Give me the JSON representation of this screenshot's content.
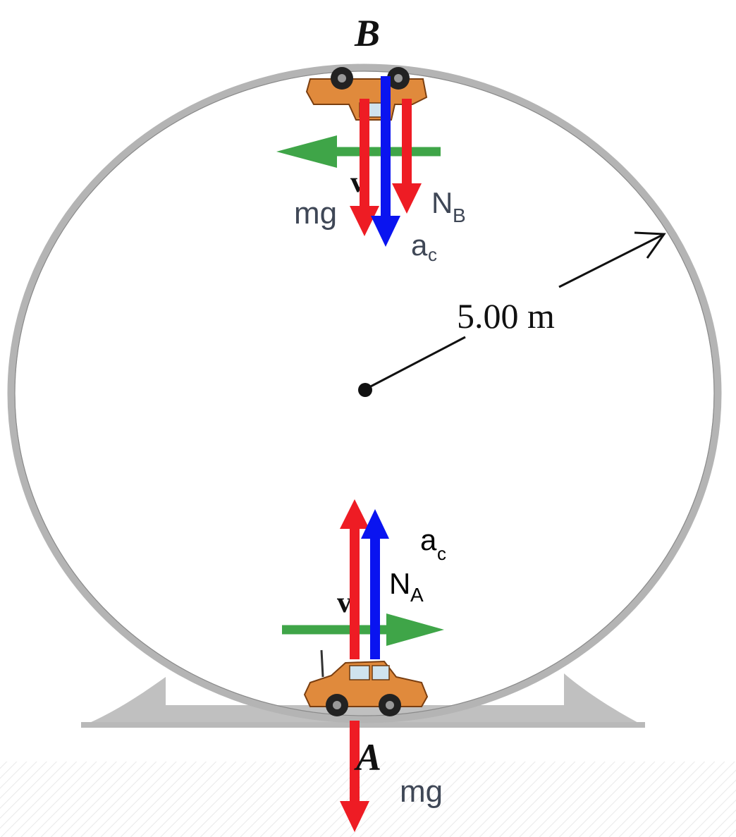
{
  "labels": {
    "point_top": "B",
    "point_bottom": "A",
    "radius": "5.00 m",
    "velocity_symbol": "v",
    "top_weight": "mg",
    "top_normal": "N",
    "top_normal_sub": "B",
    "top_accel": "a",
    "top_accel_sub": "c",
    "bottom_accel": "a",
    "bottom_accel_sub": "c",
    "bottom_normal": "N",
    "bottom_normal_sub": "A",
    "bottom_weight": "mg"
  },
  "colors": {
    "force_arrow": "#ee1c24",
    "accel_arrow": "#0a14f0",
    "velocity_arrow": "#3fa548",
    "loop_track": "#b4b4b4",
    "support": "#c0c0c0",
    "car_body": "#e08a3c",
    "label_text": "#3f4756"
  }
}
